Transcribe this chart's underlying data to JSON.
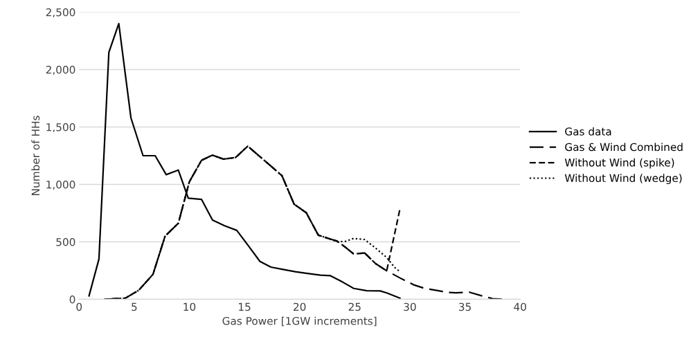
{
  "chart_data": {
    "type": "line",
    "xlabel": "Gas Power [1GW increments]",
    "ylabel": "Number of HHs",
    "xlim": [
      0,
      40
    ],
    "xticks": [
      0,
      5,
      10,
      15,
      20,
      25,
      30,
      35,
      40
    ],
    "ylim": [
      0,
      2500
    ],
    "yticks": [
      {
        "value": 0,
        "label": "0"
      },
      {
        "value": 500,
        "label": "500"
      },
      {
        "value": 1000,
        "label": "1,000"
      },
      {
        "value": 1500,
        "label": "1,500"
      },
      {
        "value": 2000,
        "label": "2,000"
      },
      {
        "value": 2500,
        "label": "2,500"
      }
    ],
    "grid": "y",
    "legend": "right",
    "series": [
      {
        "name": "Gas data",
        "color": "#000000",
        "line_style": "solid",
        "x": [
          0.9,
          1.8,
          2.7,
          3.6,
          4.7,
          5.8,
          6.9,
          7.9,
          9.0,
          9.9,
          11.1,
          12.1,
          13.2,
          14.3,
          15.4,
          16.4,
          17.4,
          18.5,
          19.6,
          20.7,
          21.9,
          22.8,
          23.9,
          24.9,
          26.1,
          27.3,
          27.9,
          29.1
        ],
        "values": [
          30,
          350,
          2150,
          2400,
          1580,
          1250,
          1250,
          1085,
          1125,
          880,
          870,
          690,
          640,
          600,
          460,
          330,
          280,
          260,
          240,
          225,
          210,
          205,
          150,
          95,
          75,
          73,
          56,
          10
        ]
      },
      {
        "name": "Gas & Wind Combined",
        "color": "#000000",
        "line_style": "longdash",
        "x": [
          2.3,
          3.2,
          4.2,
          5.4,
          6.7,
          7.8,
          9.0,
          10.0,
          11.1,
          12.1,
          13.1,
          14.2,
          15.3,
          16.3,
          17.3,
          18.4,
          19.5,
          20.6,
          21.7,
          22.6,
          23.4,
          24.2,
          24.9,
          25.9,
          26.9,
          27.9,
          29.1,
          30.4,
          31.4,
          32.6,
          33.4,
          34.2,
          35.4,
          36.5,
          37.5,
          38.4
        ],
        "values": [
          0,
          5,
          10,
          78,
          217,
          550,
          662,
          1023,
          1209,
          1255,
          1220,
          1235,
          1333,
          1250,
          1168,
          1076,
          828,
          754,
          558,
          530,
          507,
          450,
          395,
          403,
          310,
          248,
          186,
          124,
          93,
          75,
          60,
          56,
          62,
          31,
          6,
          0
        ]
      },
      {
        "name": "Without Wind (spike)",
        "color": "#000000",
        "line_style": "dashed",
        "x": [
          2.3,
          3.2,
          4.2,
          5.4,
          6.7,
          7.8,
          9.0,
          10.0,
          11.1,
          12.1,
          13.1,
          14.2,
          15.3,
          16.3,
          17.3,
          18.4,
          19.5,
          20.6,
          21.7,
          22.6,
          23.4,
          24.2,
          24.9,
          25.9,
          26.9,
          27.9,
          29.1
        ],
        "values": [
          0,
          5,
          10,
          78,
          217,
          550,
          662,
          1023,
          1209,
          1255,
          1220,
          1235,
          1333,
          1250,
          1168,
          1076,
          828,
          754,
          558,
          530,
          507,
          450,
          395,
          403,
          310,
          248,
          786
        ]
      },
      {
        "name": "Without Wind (wedge)",
        "color": "#000000",
        "line_style": "dotted",
        "x": [
          2.3,
          3.2,
          4.2,
          5.4,
          6.7,
          7.8,
          9.0,
          10.0,
          11.1,
          12.1,
          13.1,
          14.2,
          15.3,
          16.3,
          17.3,
          18.4,
          19.5,
          20.6,
          21.7,
          22.6,
          23.4,
          24.2,
          24.9,
          25.9,
          26.9,
          27.9,
          28.6,
          29.1
        ],
        "values": [
          0,
          5,
          10,
          78,
          217,
          550,
          662,
          1023,
          1209,
          1255,
          1220,
          1235,
          1333,
          1250,
          1168,
          1076,
          828,
          754,
          558,
          530,
          500,
          505,
          530,
          520,
          445,
          364,
          279,
          240
        ]
      }
    ]
  }
}
